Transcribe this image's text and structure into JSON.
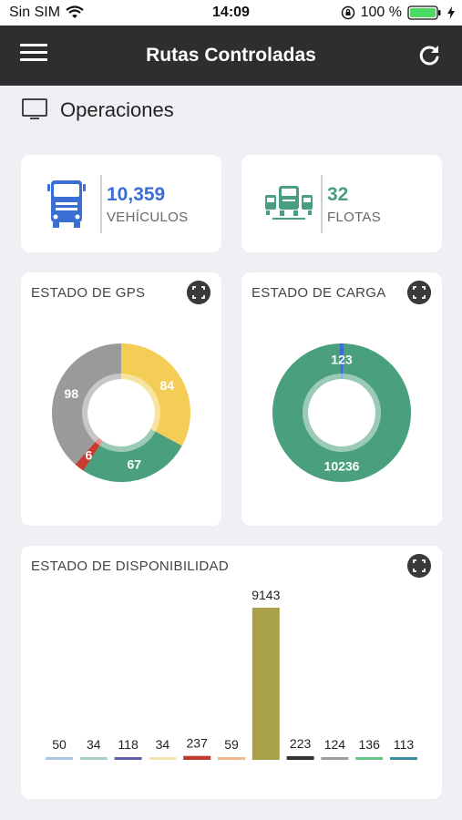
{
  "status_bar": {
    "carrier": "Sin SIM",
    "time": "14:09",
    "battery": "100 %"
  },
  "header": {
    "title": "Rutas Controladas"
  },
  "section": {
    "title": "Operaciones"
  },
  "stats": {
    "vehicles": {
      "value": "10,359",
      "label": "VEHÍCULOS",
      "color": "#3b6ed3"
    },
    "fleets": {
      "value": "32",
      "label": "FLOTAS",
      "color": "#4a9e80"
    }
  },
  "gps": {
    "title": "ESTADO DE GPS",
    "chart_data": {
      "type": "pie",
      "labels": [
        "84",
        "67",
        "6",
        "98"
      ],
      "values": [
        84,
        67,
        6,
        98
      ],
      "colors": [
        "#f3cd55",
        "#4aa07d",
        "#c83b31",
        "#9a9a9a"
      ]
    }
  },
  "carga": {
    "title": "ESTADO DE CARGA",
    "chart_data": {
      "type": "pie",
      "labels": [
        "123",
        "10236"
      ],
      "values": [
        123,
        10236
      ],
      "colors": [
        "#3b6ed3",
        "#4aa07d"
      ]
    }
  },
  "disponibilidad": {
    "title": "ESTADO DE DISPONIBILIDAD",
    "chart_data": {
      "type": "bar",
      "values": [
        50,
        34,
        118,
        34,
        237,
        59,
        9143,
        223,
        124,
        136,
        113
      ],
      "colors": [
        "#a9c6e8",
        "#a6cfc9",
        "#5f5ea8",
        "#f0e3ad",
        "#bf3a30",
        "#f1b98f",
        "#a8a14a",
        "#333333",
        "#9e9e9e",
        "#66c78c",
        "#3a8fa0"
      ],
      "ylim": [
        0,
        9143
      ]
    }
  }
}
